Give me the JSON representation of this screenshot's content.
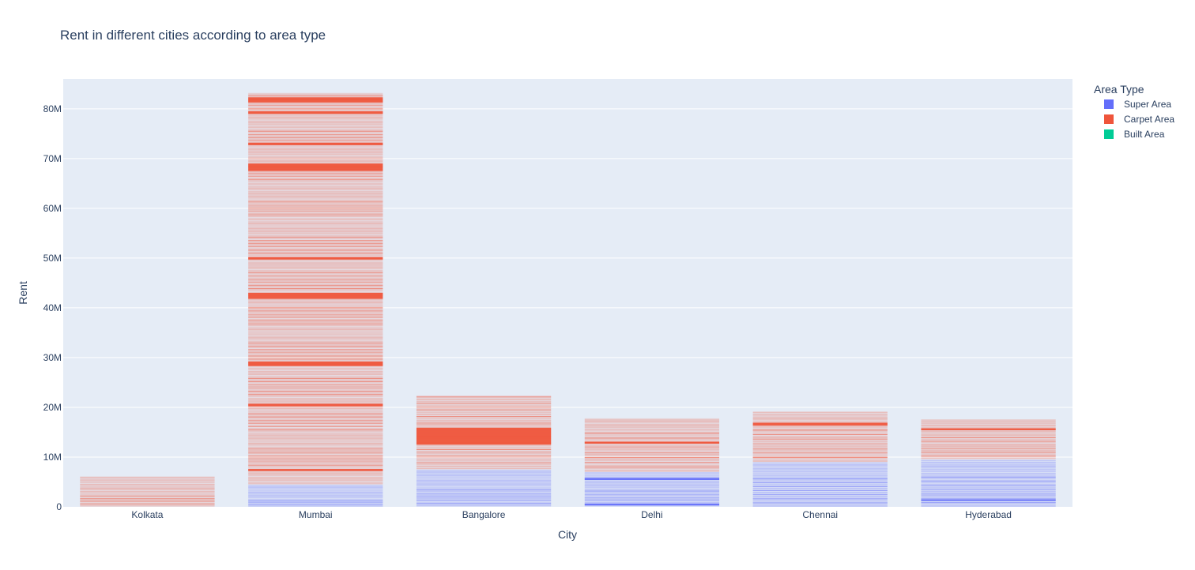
{
  "chart_data": {
    "type": "bar",
    "title": "Rent in different cities according to area type",
    "xlabel": "City",
    "ylabel": "Rent",
    "categories": [
      "Kolkata",
      "Mumbai",
      "Bangalore",
      "Delhi",
      "Chennai",
      "Hyderabad"
    ],
    "ylim": [
      0,
      86000000
    ],
    "yticks": [
      0,
      10000000,
      20000000,
      30000000,
      40000000,
      50000000,
      60000000,
      70000000,
      80000000
    ],
    "ytick_labels": [
      "0",
      "10M",
      "20M",
      "30M",
      "40M",
      "50M",
      "60M",
      "70M",
      "80M"
    ],
    "barmode": "stack",
    "grid": true,
    "legend": {
      "title": "Area Type",
      "placement": "top-right"
    },
    "series": [
      {
        "name": "Super Area",
        "color": "#636efa",
        "values": [
          0,
          4500000,
          7500000,
          7000000,
          9000000,
          9500000
        ]
      },
      {
        "name": "Carpet Area",
        "color": "#ef553b",
        "values": [
          6100000,
          78700000,
          14800000,
          10800000,
          10200000,
          8100000
        ]
      },
      {
        "name": "Built Area",
        "color": "#00cc96",
        "values": [
          0,
          0,
          0,
          0,
          0,
          0
        ]
      }
    ],
    "dense_bands": [
      {
        "category": "Mumbai",
        "from": 28300000,
        "to": 29200000,
        "series": "Carpet Area"
      },
      {
        "category": "Mumbai",
        "from": 41800000,
        "to": 43000000,
        "series": "Carpet Area"
      },
      {
        "category": "Mumbai",
        "from": 67500000,
        "to": 69000000,
        "series": "Carpet Area"
      },
      {
        "category": "Mumbai",
        "from": 79000000,
        "to": 79500000,
        "series": "Carpet Area"
      },
      {
        "category": "Mumbai",
        "from": 81300000,
        "to": 82300000,
        "series": "Carpet Area"
      },
      {
        "category": "Mumbai",
        "from": 72700000,
        "to": 73200000,
        "series": "Carpet Area"
      },
      {
        "category": "Mumbai",
        "from": 49700000,
        "to": 50200000,
        "series": "Carpet Area"
      },
      {
        "category": "Mumbai",
        "from": 20200000,
        "to": 20700000,
        "series": "Carpet Area"
      },
      {
        "category": "Mumbai",
        "from": 7200000,
        "to": 7600000,
        "series": "Carpet Area"
      },
      {
        "category": "Bangalore",
        "from": 12500000,
        "to": 15900000,
        "series": "Carpet Area"
      },
      {
        "category": "Delhi",
        "from": 12700000,
        "to": 13100000,
        "series": "Carpet Area"
      },
      {
        "category": "Delhi",
        "from": 5400000,
        "to": 5800000,
        "series": "Super Area"
      },
      {
        "category": "Delhi",
        "from": 300000,
        "to": 600000,
        "series": "Super Area"
      },
      {
        "category": "Chennai",
        "from": 16400000,
        "to": 16900000,
        "series": "Carpet Area"
      },
      {
        "category": "Hyderabad",
        "from": 15400000,
        "to": 15800000,
        "series": "Carpet Area"
      },
      {
        "category": "Hyderabad",
        "from": 1200000,
        "to": 1500000,
        "series": "Super Area"
      }
    ]
  }
}
